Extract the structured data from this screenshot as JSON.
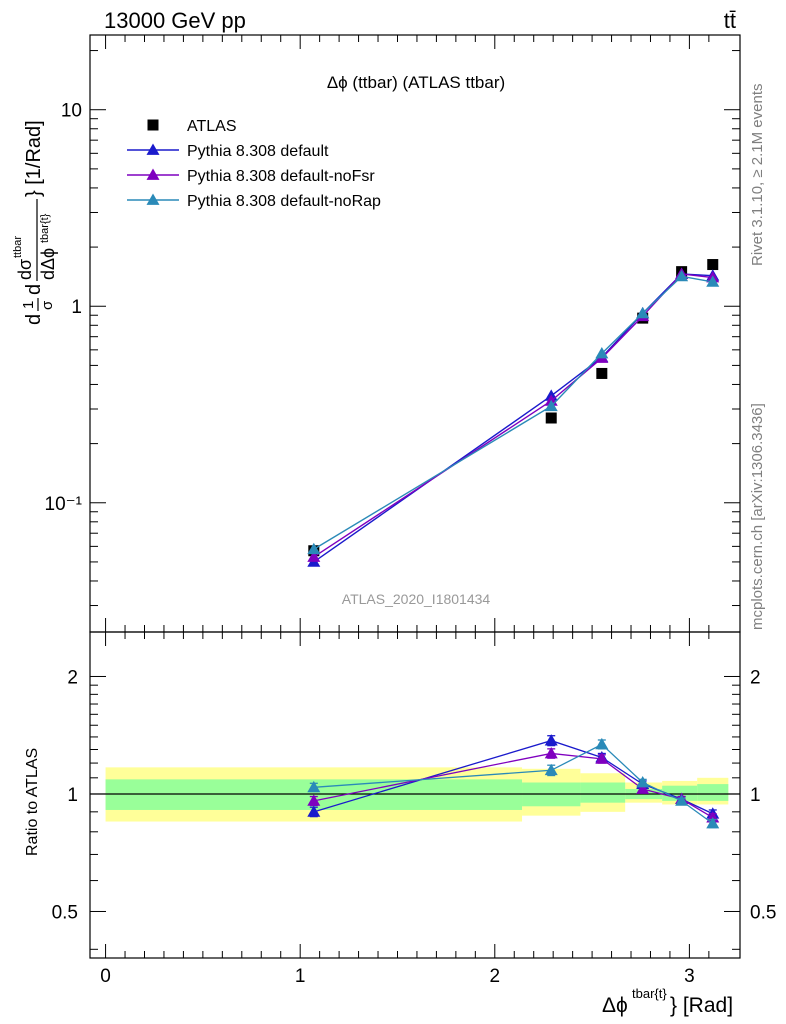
{
  "header": {
    "left": "13000 GeV pp",
    "right": "tt̄"
  },
  "side_text": {
    "rivet": "Rivet 3.1.10, ≥ 2.1M events",
    "mcplots": "mcplots.cern.ch [arXiv:1306.3436]"
  },
  "chart_data": [
    {
      "type": "line",
      "panel": "main",
      "title": "Δϕ (ttbar) (ATLAS ttbar)",
      "watermark": "ATLAS_2020_I1801434",
      "ylabel": "d(1/σ)dσ^{ttbar}/dΔϕ^{tbar{t}} [1/Rad]",
      "yscale": "log",
      "ylim": [
        0.022,
        24
      ],
      "xlim": [
        -0.08,
        3.26
      ],
      "yticks": [
        {
          "label": "10",
          "value": 10
        },
        {
          "label": "1",
          "value": 1
        },
        {
          "label": "10⁻¹",
          "value": 0.1
        }
      ],
      "legend_position": "top-left",
      "x": [
        1.07,
        2.29,
        2.55,
        2.76,
        2.96,
        3.12
      ],
      "series": [
        {
          "name": "ATLAS",
          "color": "#000000",
          "marker": "square",
          "values": [
            0.057,
            0.27,
            0.455,
            0.87,
            1.5,
            1.63
          ]
        },
        {
          "name": "Pythia 8.308 default",
          "color": "#1a1acc",
          "marker": "triangle",
          "values": [
            0.05,
            0.35,
            0.55,
            0.92,
            1.46,
            1.43
          ]
        },
        {
          "name": "Pythia 8.308 default-noFsr",
          "color": "#7f00bf",
          "marker": "triangle",
          "values": [
            0.053,
            0.33,
            0.545,
            0.89,
            1.46,
            1.4
          ]
        },
        {
          "name": "Pythia 8.308 default-noRap",
          "color": "#2a8ab8",
          "marker": "triangle",
          "values": [
            0.058,
            0.31,
            0.575,
            0.92,
            1.42,
            1.33
          ]
        }
      ]
    },
    {
      "type": "line",
      "panel": "ratio",
      "ylabel": "Ratio to ATLAS",
      "xlabel": "Δϕ^{tbar{t}} [Rad]",
      "yscale": "log",
      "ylim": [
        0.38,
        2.6
      ],
      "xlim": [
        -0.08,
        3.26
      ],
      "yticks": [
        {
          "label": "2",
          "value": 2
        },
        {
          "label": "1",
          "value": 1
        },
        {
          "label": "0.5",
          "value": 0.5
        }
      ],
      "xticks": [
        {
          "label": "0",
          "value": 0
        },
        {
          "label": "1",
          "value": 1
        },
        {
          "label": "2",
          "value": 2
        },
        {
          "label": "3",
          "value": 3
        }
      ],
      "reference": 1,
      "bands": [
        {
          "x0": 0.0,
          "x1": 2.14,
          "yellow": [
            0.85,
            1.17
          ],
          "green": [
            0.91,
            1.09
          ]
        },
        {
          "x0": 2.14,
          "x1": 2.44,
          "yellow": [
            0.88,
            1.16
          ],
          "green": [
            0.93,
            1.07
          ]
        },
        {
          "x0": 2.44,
          "x1": 2.67,
          "yellow": [
            0.9,
            1.13
          ],
          "green": [
            0.95,
            1.07
          ]
        },
        {
          "x0": 2.67,
          "x1": 2.86,
          "yellow": [
            0.95,
            1.07
          ],
          "green": [
            0.97,
            1.03
          ]
        },
        {
          "x0": 2.86,
          "x1": 3.04,
          "yellow": [
            0.94,
            1.08
          ],
          "green": [
            0.96,
            1.05
          ]
        },
        {
          "x0": 3.04,
          "x1": 3.2,
          "yellow": [
            0.94,
            1.1
          ],
          "green": [
            0.96,
            1.06
          ]
        }
      ],
      "x": [
        1.07,
        2.29,
        2.55,
        2.76,
        2.96,
        3.12
      ],
      "series": [
        {
          "name": "Pythia 8.308 default",
          "color": "#1a1acc",
          "values": [
            0.9,
            1.37,
            1.24,
            1.06,
            0.97,
            0.89
          ],
          "errors": [
            0.025,
            0.04,
            0.03,
            0.02,
            0.015,
            0.02
          ]
        },
        {
          "name": "Pythia 8.308 default-noFsr",
          "color": "#7f00bf",
          "values": [
            0.96,
            1.27,
            1.23,
            1.03,
            0.97,
            0.87
          ],
          "errors": [
            0.025,
            0.035,
            0.03,
            0.02,
            0.015,
            0.02
          ]
        },
        {
          "name": "Pythia 8.308 default-noRap",
          "color": "#2a8ab8",
          "values": [
            1.04,
            1.15,
            1.34,
            1.07,
            0.96,
            0.84
          ],
          "errors": [
            0.025,
            0.035,
            0.035,
            0.02,
            0.015,
            0.02
          ]
        }
      ]
    }
  ]
}
